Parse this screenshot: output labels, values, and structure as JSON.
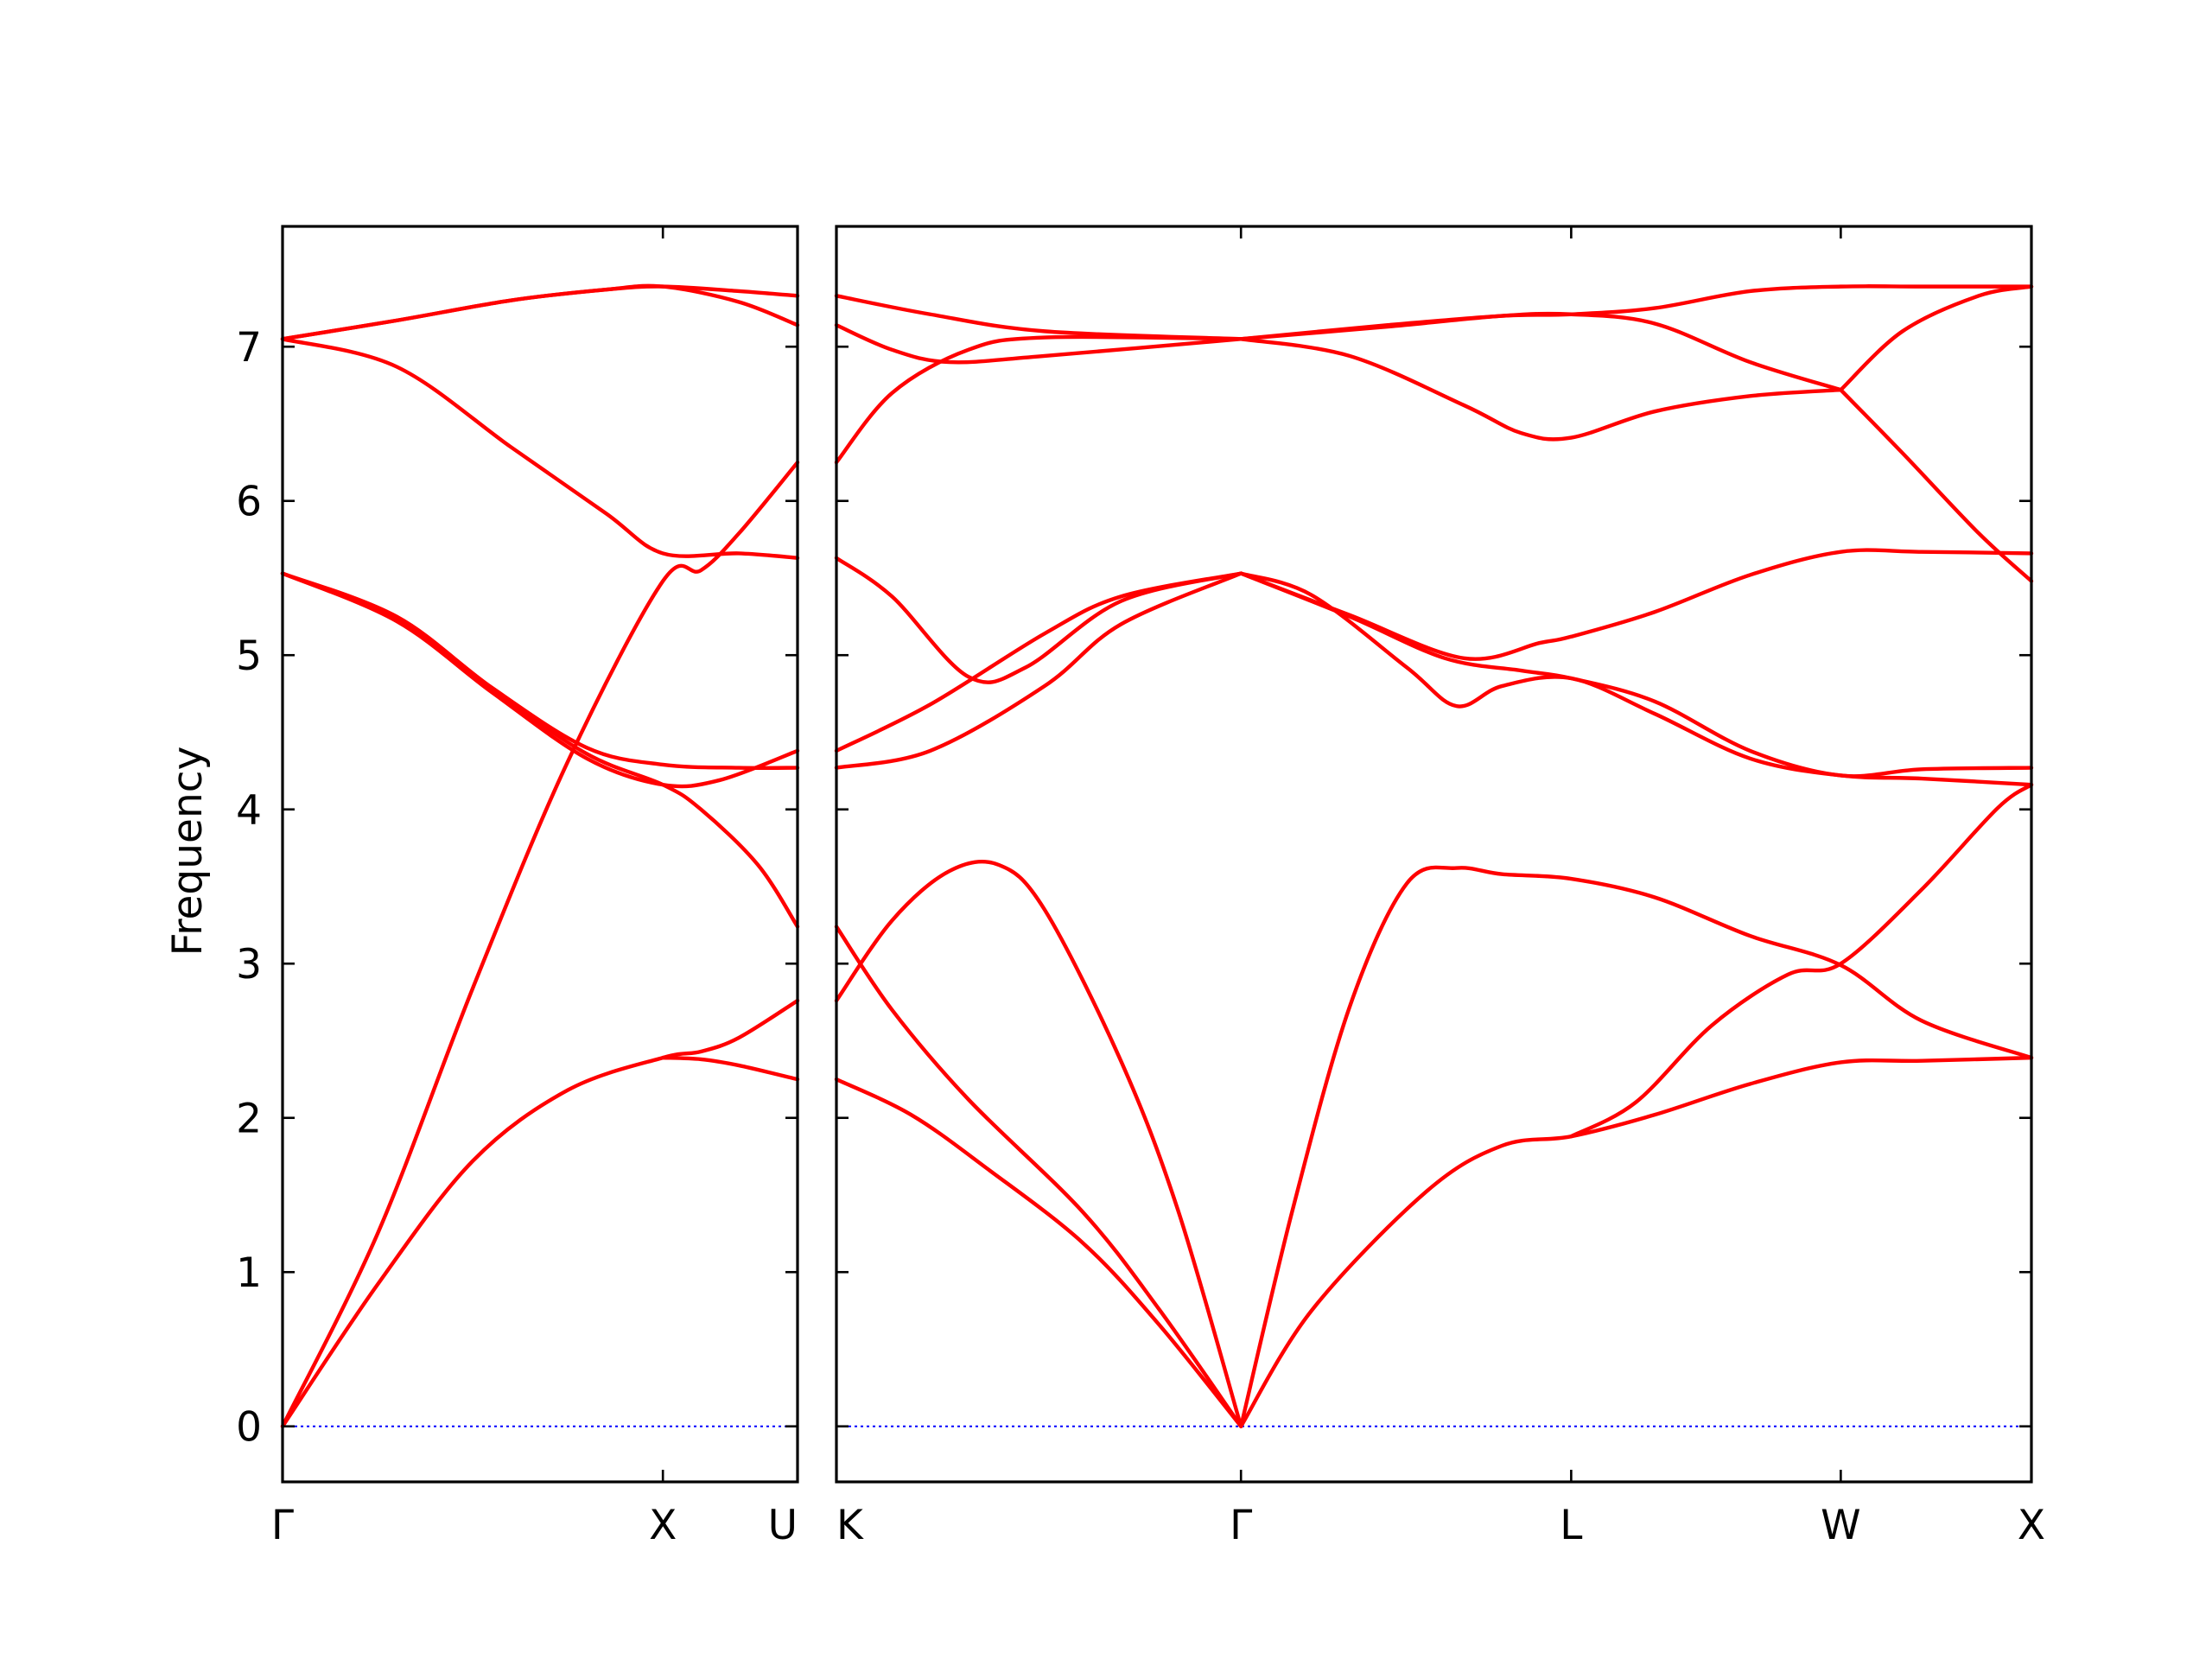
{
  "chart_data": {
    "type": "line",
    "title": "",
    "ylabel": "Frequency",
    "xlabel": "",
    "ylim": [
      -0.36,
      7.78
    ],
    "yticks": [
      0,
      1,
      2,
      3,
      4,
      5,
      6,
      7
    ],
    "grid": false,
    "legend": "none",
    "band_color": "#ff0000",
    "zero_line_color": "#0000ff",
    "panels": [
      {
        "id": "left",
        "xlim": [
          0,
          1.354
        ],
        "xticks": [
          {
            "label": "Γ",
            "x": 0
          },
          {
            "label": "X",
            "x": 1.0
          },
          {
            "label": "U",
            "x": 1.354
          }
        ],
        "series": [
          {
            "points": [
              [
                0,
                0
              ],
              [
                0.25,
                1.25
              ],
              [
                0.5,
                2.84
              ],
              [
                0.75,
                4.31
              ],
              [
                1.0,
                5.48
              ],
              [
                1.1,
                5.55
              ],
              [
                1.2,
                5.79
              ],
              [
                1.354,
                6.25
              ]
            ]
          },
          {
            "points": [
              [
                0,
                0
              ],
              [
                0.25,
                0.92
              ],
              [
                0.5,
                1.72
              ],
              [
                0.75,
                2.18
              ],
              [
                1.0,
                2.39
              ],
              [
                1.1,
                2.43
              ],
              [
                1.2,
                2.52
              ],
              [
                1.354,
                2.76
              ]
            ]
          },
          {
            "points": [
              [
                0,
                7.05
              ],
              [
                0.3,
                6.87
              ],
              [
                0.6,
                6.35
              ],
              [
                0.85,
                5.92
              ],
              [
                1.0,
                5.66
              ],
              [
                1.2,
                5.66
              ],
              [
                1.354,
                5.63
              ]
            ]
          },
          {
            "points": [
              [
                0,
                5.53
              ],
              [
                0.3,
                5.25
              ],
              [
                0.55,
                4.79
              ],
              [
                0.8,
                4.4
              ],
              [
                1.0,
                4.29
              ],
              [
                1.2,
                4.27
              ],
              [
                1.354,
                4.27
              ]
            ]
          },
          {
            "points": [
              [
                0,
                5.53
              ],
              [
                0.3,
                5.22
              ],
              [
                0.55,
                4.76
              ],
              [
                0.8,
                4.33
              ],
              [
                1.0,
                4.16
              ],
              [
                1.15,
                4.19
              ],
              [
                1.354,
                4.38
              ]
            ]
          },
          {
            "points": [
              [
                0,
                5.53
              ],
              [
                0.3,
                5.24
              ],
              [
                0.55,
                4.78
              ],
              [
                0.8,
                4.36
              ],
              [
                1.0,
                4.16
              ],
              [
                1.1,
                4.0
              ],
              [
                1.25,
                3.64
              ],
              [
                1.354,
                3.24
              ]
            ]
          },
          {
            "points": [
              [
                0,
                7.05
              ],
              [
                0.3,
                7.17
              ],
              [
                0.6,
                7.3
              ],
              [
                0.85,
                7.37
              ],
              [
                1.0,
                7.39
              ],
              [
                1.2,
                7.36
              ],
              [
                1.354,
                7.33
              ]
            ]
          },
          {
            "points": [
              [
                0,
                7.05
              ],
              [
                0.3,
                7.17
              ],
              [
                0.6,
                7.3
              ],
              [
                0.85,
                7.37
              ],
              [
                1.0,
                7.39
              ],
              [
                1.2,
                7.29
              ],
              [
                1.354,
                7.14
              ]
            ]
          },
          {
            "points": [
              [
                1.0,
                2.39
              ],
              [
                1.1,
                2.38
              ],
              [
                1.2,
                2.34
              ],
              [
                1.354,
                2.25
              ]
            ]
          }
        ]
      },
      {
        "id": "right",
        "xlim": [
          1.354,
          4.488
        ],
        "xticks": [
          {
            "label": "K",
            "x": 1.354
          },
          {
            "label": "Γ",
            "x": 2.415
          },
          {
            "label": "L",
            "x": 3.281
          },
          {
            "label": "W",
            "x": 3.988
          },
          {
            "label": "X",
            "x": 4.488
          }
        ],
        "series": [
          {
            "points": [
              [
                1.354,
                2.25
              ],
              [
                1.55,
                2.02
              ],
              [
                1.75,
                1.67
              ],
              [
                2.0,
                1.19
              ],
              [
                2.2,
                0.66
              ],
              [
                2.415,
                0
              ]
            ]
          },
          {
            "points": [
              [
                1.354,
                3.24
              ],
              [
                1.5,
                2.7
              ],
              [
                1.7,
                2.12
              ],
              [
                2.0,
                1.39
              ],
              [
                2.2,
                0.76
              ],
              [
                2.415,
                0
              ]
            ]
          },
          {
            "points": [
              [
                1.354,
                2.76
              ],
              [
                1.5,
                3.28
              ],
              [
                1.65,
                3.6
              ],
              [
                1.78,
                3.64
              ],
              [
                1.9,
                3.35
              ],
              [
                2.1,
                2.37
              ],
              [
                2.25,
                1.4
              ],
              [
                2.415,
                0
              ]
            ]
          },
          {
            "points": [
              [
                2.415,
                0
              ],
              [
                2.6,
                0.75
              ],
              [
                2.9,
                1.52
              ],
              [
                3.1,
                1.82
              ],
              [
                3.281,
                1.88
              ],
              [
                3.5,
                2.02
              ],
              [
                3.75,
                2.22
              ],
              [
                3.988,
                2.36
              ],
              [
                4.2,
                2.37
              ],
              [
                4.488,
                2.39
              ]
            ]
          },
          {
            "points": [
              [
                2.415,
                0
              ],
              [
                2.55,
                1.4
              ],
              [
                2.7,
                2.72
              ],
              [
                2.85,
                3.52
              ],
              [
                2.98,
                3.62
              ],
              [
                3.1,
                3.58
              ],
              [
                3.281,
                3.55
              ],
              [
                3.5,
                3.43
              ],
              [
                3.75,
                3.18
              ],
              [
                3.988,
                2.99
              ],
              [
                4.2,
                2.63
              ],
              [
                4.488,
                2.39
              ]
            ]
          },
          {
            "points": [
              [
                3.281,
                1.88
              ],
              [
                3.45,
                2.1
              ],
              [
                3.65,
                2.6
              ],
              [
                3.85,
                2.93
              ],
              [
                3.988,
                3.0
              ],
              [
                4.2,
                3.48
              ],
              [
                4.4,
                4.01
              ],
              [
                4.488,
                4.16
              ]
            ]
          },
          {
            "points": [
              [
                1.354,
                5.63
              ],
              [
                1.5,
                5.38
              ],
              [
                1.7,
                4.86
              ],
              [
                1.85,
                4.92
              ],
              [
                2.1,
                5.35
              ],
              [
                2.415,
                5.53
              ]
            ]
          },
          {
            "points": [
              [
                1.354,
                4.38
              ],
              [
                1.6,
                4.68
              ],
              [
                1.9,
                5.14
              ],
              [
                2.1,
                5.38
              ],
              [
                2.415,
                5.53
              ]
            ]
          },
          {
            "points": [
              [
                1.354,
                4.27
              ],
              [
                1.6,
                4.38
              ],
              [
                1.9,
                4.8
              ],
              [
                2.1,
                5.2
              ],
              [
                2.415,
                5.53
              ]
            ]
          },
          {
            "points": [
              [
                2.415,
                5.53
              ],
              [
                2.6,
                5.39
              ],
              [
                2.85,
                4.92
              ],
              [
                2.98,
                4.67
              ],
              [
                3.1,
                4.8
              ],
              [
                3.281,
                4.85
              ],
              [
                3.5,
                4.62
              ],
              [
                3.75,
                4.33
              ],
              [
                3.988,
                4.22
              ],
              [
                4.2,
                4.2
              ],
              [
                4.488,
                4.16
              ]
            ]
          },
          {
            "points": [
              [
                2.415,
                5.53
              ],
              [
                2.7,
                5.25
              ],
              [
                2.95,
                4.98
              ],
              [
                3.15,
                4.9
              ],
              [
                3.281,
                4.85
              ],
              [
                3.5,
                4.7
              ],
              [
                3.75,
                4.38
              ],
              [
                3.988,
                4.22
              ],
              [
                4.2,
                4.26
              ],
              [
                4.488,
                4.27
              ]
            ]
          },
          {
            "points": [
              [
                2.415,
                5.53
              ],
              [
                2.7,
                5.26
              ],
              [
                3.0,
                4.98
              ],
              [
                3.2,
                5.08
              ],
              [
                3.281,
                5.12
              ],
              [
                3.5,
                5.28
              ],
              [
                3.75,
                5.52
              ],
              [
                3.988,
                5.67
              ],
              [
                4.2,
                5.67
              ],
              [
                4.488,
                5.66
              ]
            ]
          },
          {
            "points": [
              [
                1.354,
                6.25
              ],
              [
                1.5,
                6.7
              ],
              [
                1.7,
                6.98
              ],
              [
                1.9,
                7.06
              ],
              [
                2.415,
                7.05
              ]
            ]
          },
          {
            "points": [
              [
                1.354,
                7.14
              ],
              [
                1.5,
                6.98
              ],
              [
                1.65,
                6.9
              ],
              [
                1.9,
                6.94
              ],
              [
                2.415,
                7.05
              ]
            ]
          },
          {
            "points": [
              [
                1.354,
                7.33
              ],
              [
                1.6,
                7.21
              ],
              [
                1.9,
                7.1
              ],
              [
                2.415,
                7.05
              ]
            ]
          },
          {
            "points": [
              [
                2.415,
                7.05
              ],
              [
                2.7,
                6.94
              ],
              [
                3.0,
                6.62
              ],
              [
                3.15,
                6.44
              ],
              [
                3.281,
                6.41
              ],
              [
                3.5,
                6.58
              ],
              [
                3.75,
                6.68
              ],
              [
                3.988,
                6.72
              ]
            ]
          },
          {
            "points": [
              [
                2.415,
                7.05
              ],
              [
                2.8,
                7.13
              ],
              [
                3.1,
                7.2
              ],
              [
                3.281,
                7.21
              ],
              [
                3.5,
                7.15
              ],
              [
                3.75,
                6.9
              ],
              [
                3.988,
                6.72
              ]
            ]
          },
          {
            "points": [
              [
                2.415,
                7.05
              ],
              [
                2.8,
                7.14
              ],
              [
                3.1,
                7.2
              ],
              [
                3.281,
                7.21
              ],
              [
                3.5,
                7.25
              ],
              [
                3.75,
                7.36
              ],
              [
                3.988,
                7.39
              ],
              [
                4.2,
                7.39
              ],
              [
                4.488,
                7.39
              ]
            ]
          },
          {
            "points": [
              [
                3.988,
                6.72
              ],
              [
                4.15,
                7.1
              ],
              [
                4.35,
                7.33
              ],
              [
                4.488,
                7.39
              ]
            ]
          },
          {
            "points": [
              [
                3.988,
                6.72
              ],
              [
                4.15,
                6.31
              ],
              [
                4.35,
                5.79
              ],
              [
                4.488,
                5.48
              ]
            ]
          }
        ]
      }
    ]
  }
}
